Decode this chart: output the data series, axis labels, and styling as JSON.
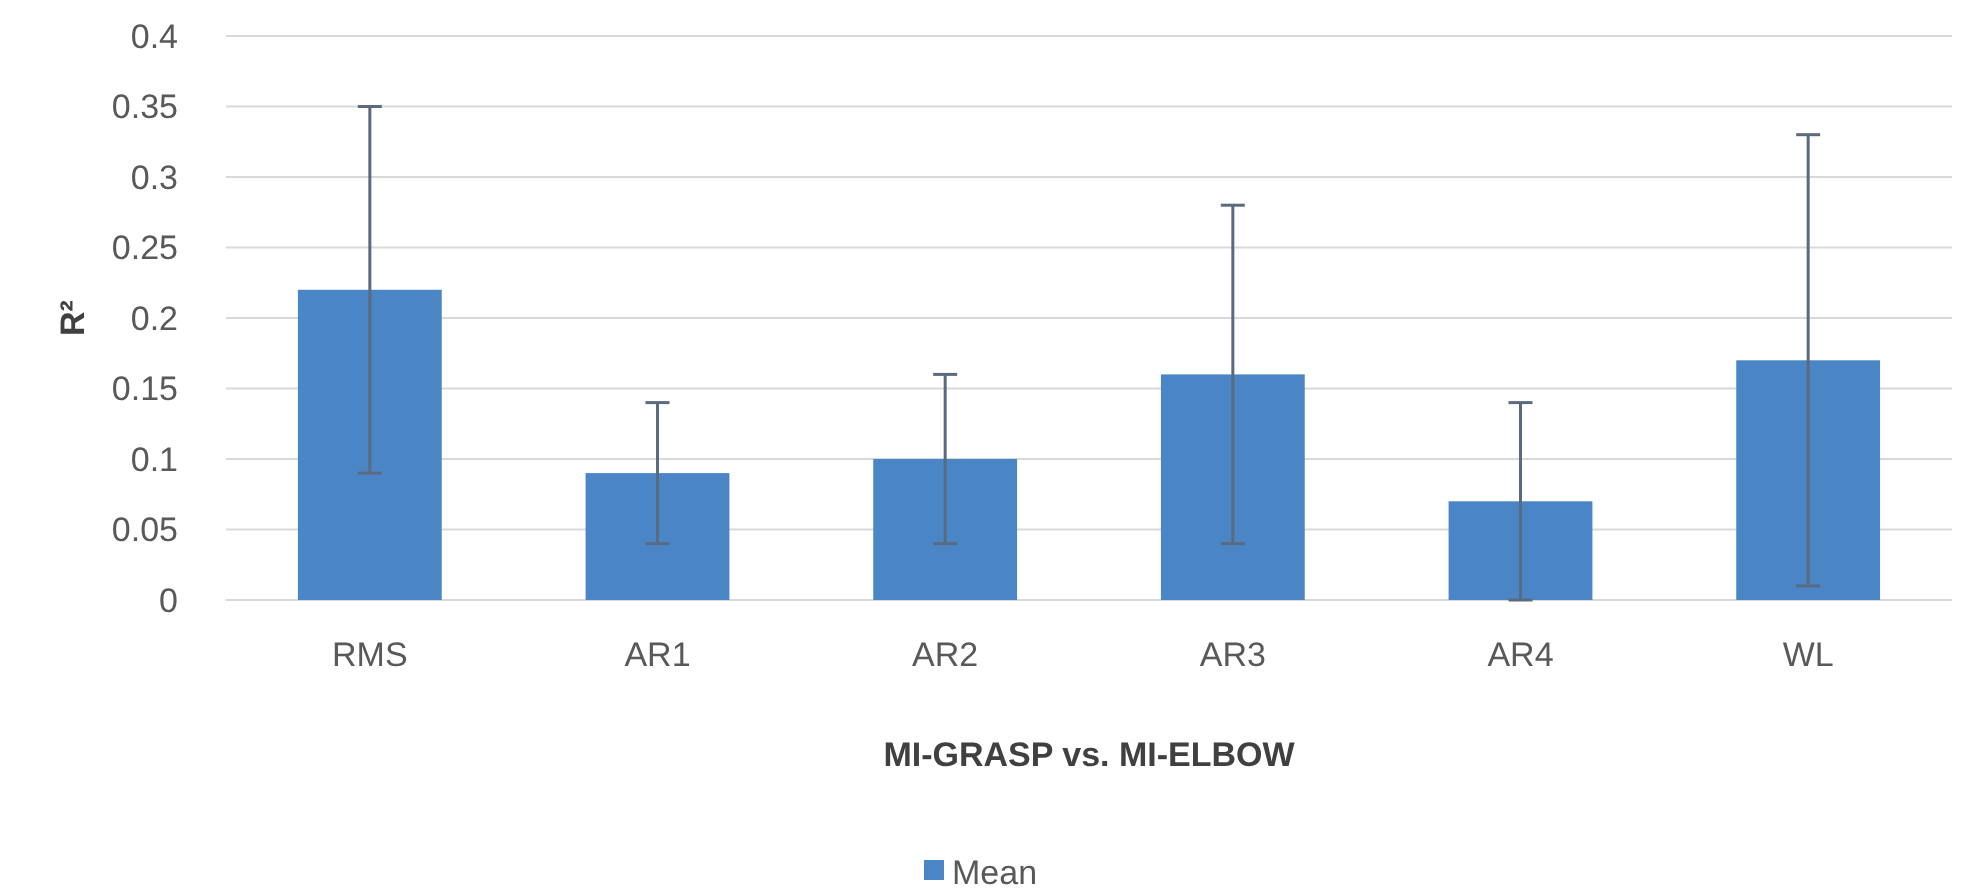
{
  "chart_data": {
    "type": "bar",
    "xlabel": "MI-GRASP vs. MI-ELBOW",
    "ylabel": "R²",
    "categories": [
      "RMS",
      "AR1",
      "AR2",
      "AR3",
      "AR4",
      "WL"
    ],
    "series": [
      {
        "name": "Mean",
        "color": "#4a86c5",
        "values": [
          0.22,
          0.09,
          0.1,
          0.16,
          0.07,
          0.17
        ],
        "errors": [
          0.13,
          0.05,
          0.06,
          0.12,
          0.07,
          0.16
        ]
      }
    ],
    "ylim": [
      0,
      0.4
    ],
    "yticks": [
      0,
      0.05,
      0.1,
      0.15,
      0.2,
      0.25,
      0.3,
      0.35,
      0.4
    ],
    "grid": "y",
    "legend": "bottom"
  }
}
